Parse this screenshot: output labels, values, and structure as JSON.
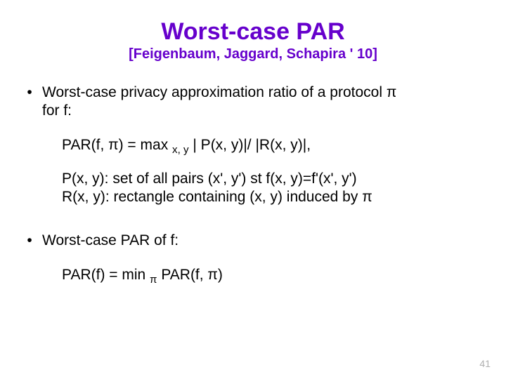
{
  "colors": {
    "title": "#6600cc",
    "body": "#000000",
    "pagenum": "#b0b0b0",
    "background": "#ffffff"
  },
  "title": "Worst-case PAR",
  "subtitle": "[Feigenbaum,  Jaggard, Schapira  ' 10]",
  "bullet1_a": "Worst-case privacy approximation ratio of a protocol π",
  "bullet1_b": "for f:",
  "formula1_a": "PAR(f, π) = max ",
  "formula1_sub": "x, y",
  "formula1_b": "   | P(x, y)|/ |R(x, y)|,",
  "defP": "P(x, y): set of all pairs (x', y') st f(x, y)=f'(x', y')",
  "defR": "R(x, y): rectangle containing (x, y) induced by π",
  "bullet2": "Worst-case PAR of f:",
  "formula2_a": "PAR(f) = min ",
  "formula2_sub": "π",
  "formula2_b": " PAR(f, π)",
  "page_number": "41"
}
